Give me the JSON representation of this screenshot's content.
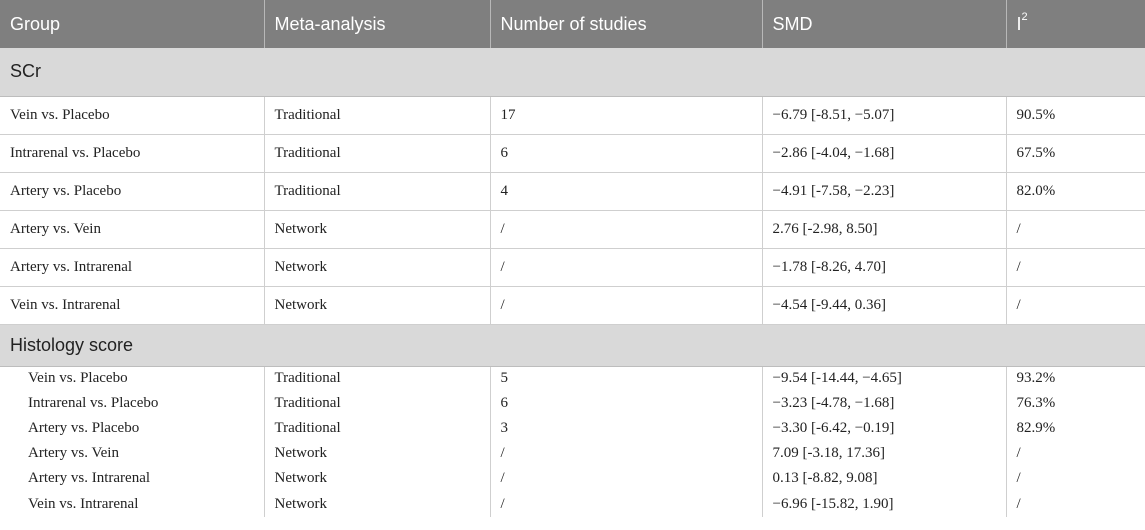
{
  "headers": {
    "group": "Group",
    "meta": "Meta-analysis",
    "studies": "Number of studies",
    "smd": "SMD",
    "i2_base": "I",
    "i2_sup": "2"
  },
  "sections": [
    {
      "title": "SCr",
      "rows": [
        {
          "group": "Vein vs. Placebo",
          "meta": "Traditional",
          "studies": "17",
          "smd": "−6.79 [-8.51, −5.07]",
          "i2": "90.5%"
        },
        {
          "group": "Intrarenal vs. Placebo",
          "meta": "Traditional",
          "studies": "6",
          "smd": "−2.86 [-4.04, −1.68]",
          "i2": "67.5%"
        },
        {
          "group": "Artery vs. Placebo",
          "meta": "Traditional",
          "studies": "4",
          "smd": "−4.91 [-7.58, −2.23]",
          "i2": "82.0%"
        },
        {
          "group": "Artery vs. Vein",
          "meta": "Network",
          "studies": "/",
          "smd": "2.76 [-2.98, 8.50]",
          "i2": "/"
        },
        {
          "group": "Artery vs. Intrarenal",
          "meta": "Network",
          "studies": "/",
          "smd": "−1.78 [-8.26, 4.70]",
          "i2": "/"
        },
        {
          "group": "Vein vs. Intrarenal",
          "meta": "Network",
          "studies": "/",
          "smd": "−4.54 [-9.44, 0.36]",
          "i2": "/"
        }
      ]
    },
    {
      "title": "Histology score",
      "rows": [
        {
          "group": "Vein vs. Placebo",
          "meta": "Traditional",
          "studies": "5",
          "smd": "−9.54 [-14.44, −4.65]",
          "i2": "93.2%"
        },
        {
          "group": "Intrarenal vs. Placebo",
          "meta": "Traditional",
          "studies": "6",
          "smd": "−3.23 [-4.78, −1.68]",
          "i2": "76.3%"
        },
        {
          "group": "Artery vs. Placebo",
          "meta": "Traditional",
          "studies": "3",
          "smd": "−3.30 [-6.42, −0.19]",
          "i2": "82.9%"
        },
        {
          "group": "Artery vs. Vein",
          "meta": "Network",
          "studies": "/",
          "smd": "7.09 [-3.18, 17.36]",
          "i2": "/"
        },
        {
          "group": "Artery vs. Intrarenal",
          "meta": "Network",
          "studies": "/",
          "smd": "0.13 [-8.82, 9.08]",
          "i2": "/"
        },
        {
          "group": "Vein vs. Intrarenal",
          "meta": "Network",
          "studies": "/",
          "smd": "−6.96 [-15.82, 1.90]",
          "i2": "/"
        }
      ]
    }
  ]
}
